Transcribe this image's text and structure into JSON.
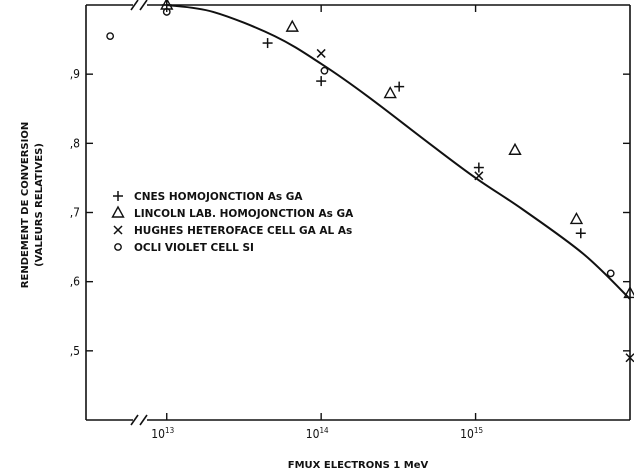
{
  "chart_data": {
    "type": "scatter",
    "title": "",
    "xlabel": "FMUX ELECTRONS 1 MeV",
    "ylabel": "RENDEMENT DE CONVERSION",
    "ylabel_sub": "(VALEURS RELATIVES)",
    "x_scale": "log",
    "xlim": [
      3000000000000.0,
      1e+16
    ],
    "ylim": [
      0.4,
      1.0
    ],
    "x_ticks": [
      {
        "base": "10",
        "exp": "13",
        "value": 10000000000000.0
      },
      {
        "base": "10",
        "exp": "14",
        "value": 100000000000000.0
      },
      {
        "base": "10",
        "exp": "15",
        "value": 1000000000000000.0
      }
    ],
    "y_ticks": [
      {
        "label": ",9",
        "value": 0.9
      },
      {
        "label": ",8",
        "value": 0.8
      },
      {
        "label": ",7",
        "value": 0.7
      },
      {
        "label": ",6",
        "value": 0.6
      },
      {
        "label": ",5",
        "value": 0.5
      }
    ],
    "axis_breaks": true,
    "grid": false,
    "legend_position": "left",
    "series": [
      {
        "name": "CNES  HOMOJONCTION As GA",
        "marker": "plus",
        "points": [
          [
            10000000000000.0,
            1.0
          ],
          [
            45000000000000.0,
            0.945
          ],
          [
            100000000000000.0,
            0.89
          ],
          [
            320000000000000.0,
            0.882
          ],
          [
            1050000000000000.0,
            0.765
          ],
          [
            4800000000000000.0,
            0.67
          ]
        ]
      },
      {
        "name": "LINCOLN LAB. HOMOJONCTION As GA",
        "marker": "triangle",
        "points": [
          [
            10000000000000.0,
            1.0
          ],
          [
            65000000000000.0,
            0.968
          ],
          [
            280000000000000.0,
            0.872
          ],
          [
            1800000000000000.0,
            0.79
          ],
          [
            4500000000000000.0,
            0.69
          ],
          [
            1e+16,
            0.583
          ]
        ]
      },
      {
        "name": "HUGHES HETEROFACE CELL GA AL As",
        "marker": "cross",
        "points": [
          [
            100000000000000.0,
            0.93
          ],
          [
            1050000000000000.0,
            0.753
          ],
          [
            1e+16,
            0.49
          ]
        ]
      },
      {
        "name": "OCLI VIOLET CELL SI",
        "marker": "circle",
        "points": [
          [
            4300000000000.0,
            0.955
          ],
          [
            10000000000000.0,
            0.99
          ],
          [
            105000000000000.0,
            0.905
          ],
          [
            7500000000000000.0,
            0.612
          ]
        ]
      }
    ],
    "fit_curve": [
      [
        10000000000000.0,
        1.0
      ],
      [
        20000000000000.0,
        0.99
      ],
      [
        50000000000000.0,
        0.955
      ],
      [
        100000000000000.0,
        0.915
      ],
      [
        200000000000000.0,
        0.868
      ],
      [
        500000000000000.0,
        0.8
      ],
      [
        1000000000000000.0,
        0.75
      ],
      [
        2000000000000000.0,
        0.705
      ],
      [
        5000000000000000.0,
        0.64
      ],
      [
        1e+16,
        0.575
      ]
    ]
  }
}
